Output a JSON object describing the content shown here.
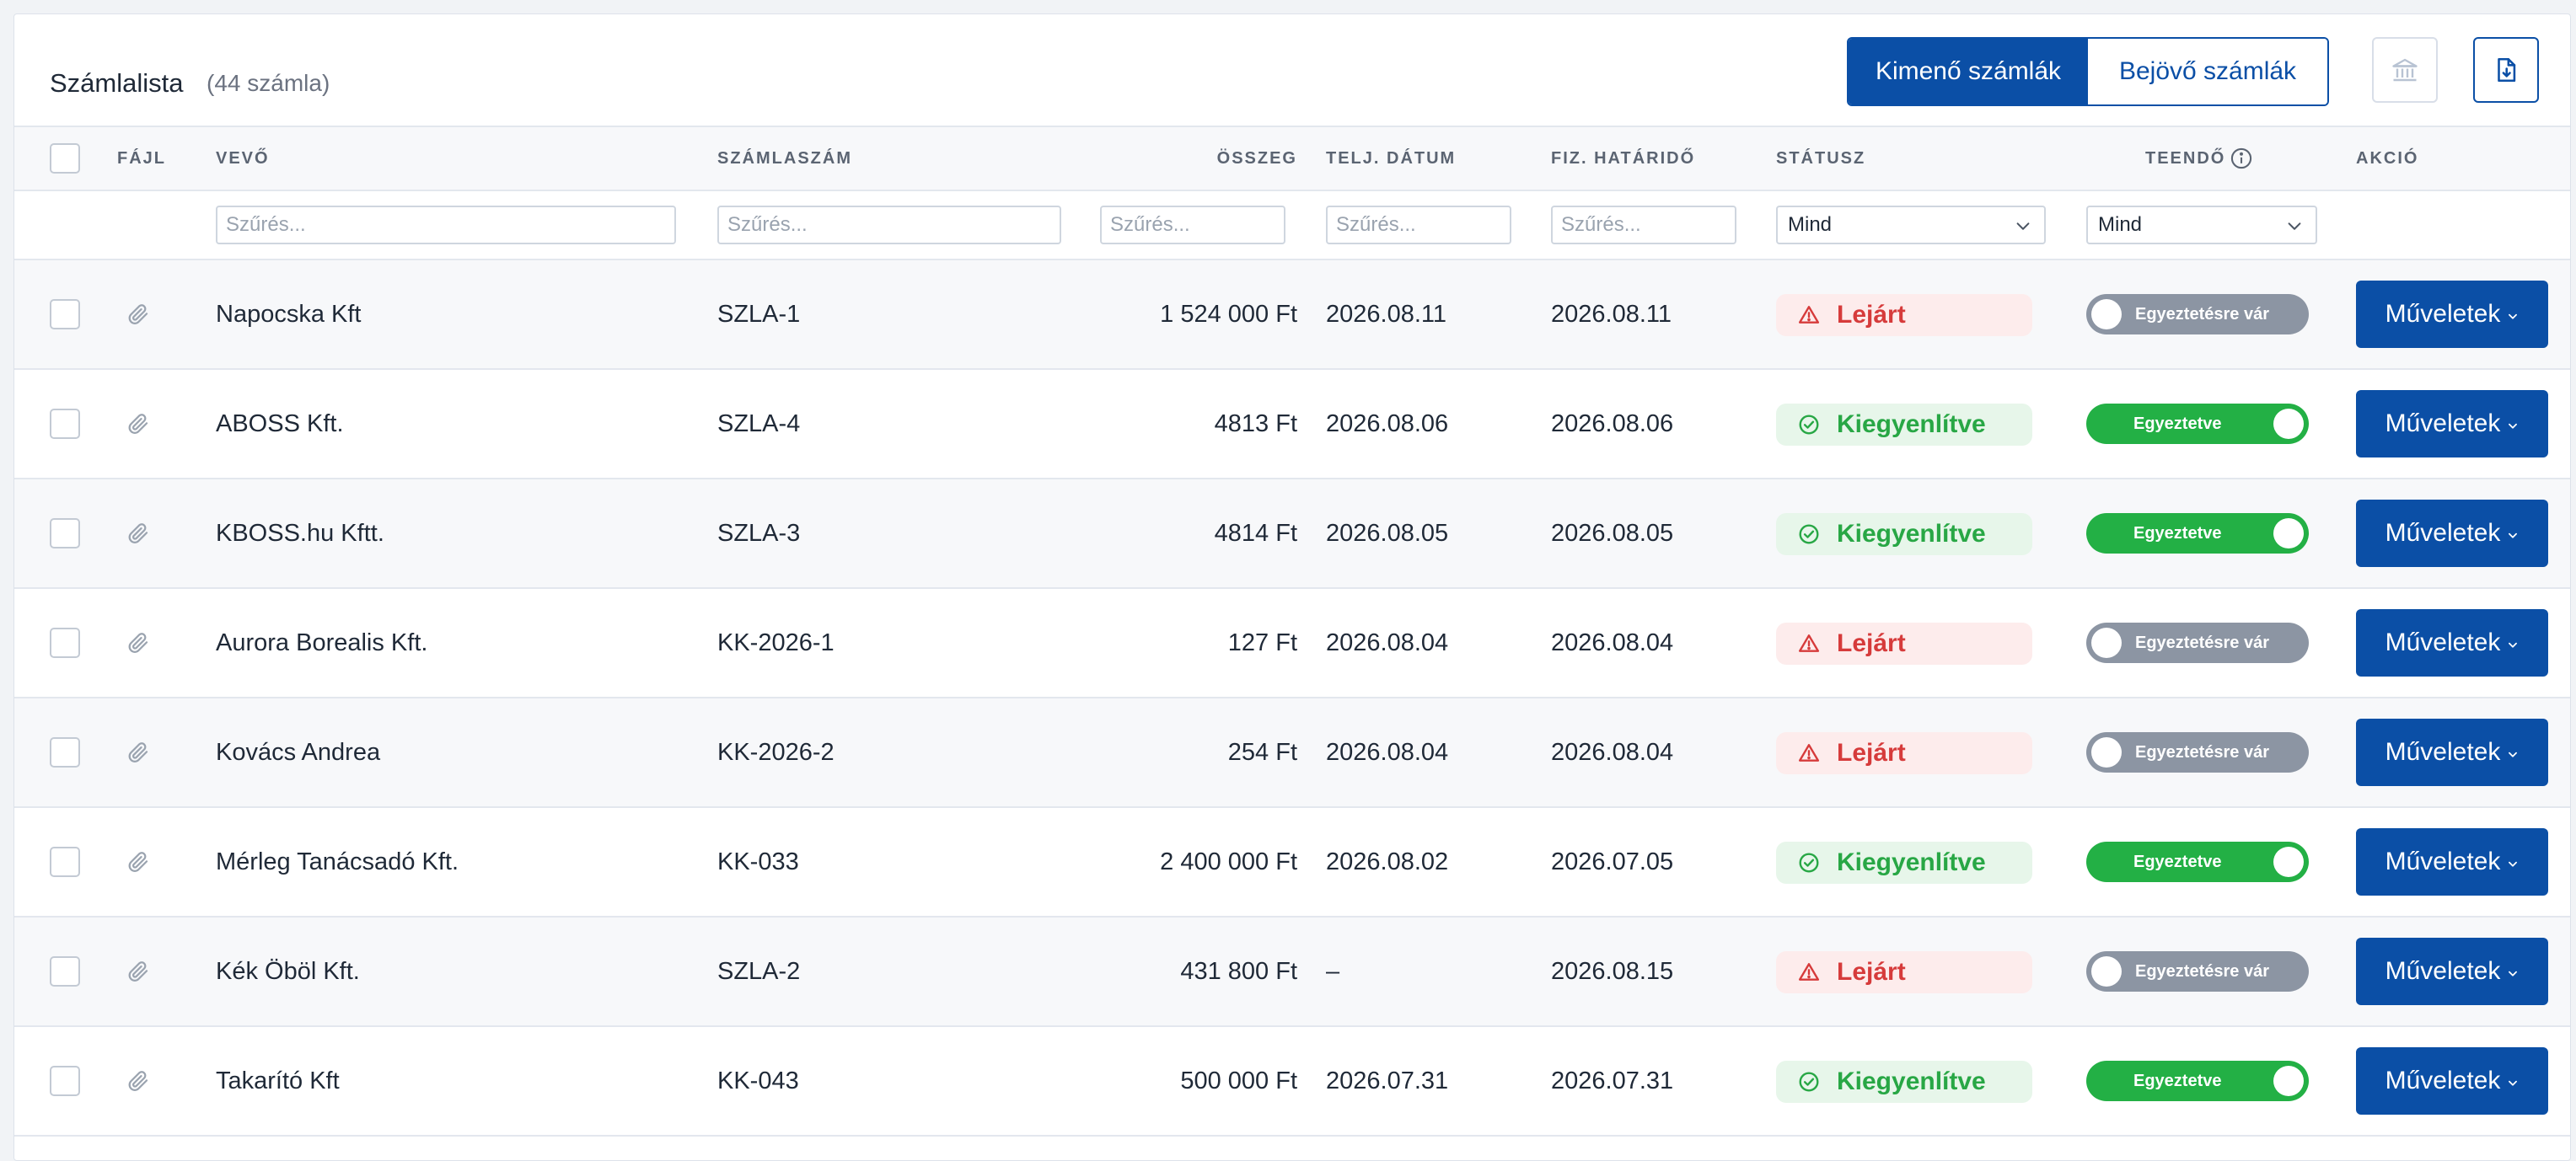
{
  "header": {
    "title": "Számlalista",
    "count": "(44 számla)",
    "tabs": [
      {
        "label": "Kimenő számlák",
        "active": true
      },
      {
        "label": "Bejövő számlák",
        "active": false
      }
    ],
    "bank_icon": "bank-icon",
    "download_icon": "download-icon"
  },
  "table": {
    "columns": {
      "file": "FÁJL",
      "buyer": "VEVŐ",
      "invoice_no": "SZÁMLASZÁM",
      "amount": "ÖSSZEG",
      "perf_date": "TELJ. DÁTUM",
      "due_date": "FIZ. HATÁRIDŐ",
      "status": "STÁTUSZ",
      "todo": "TEENDŐ",
      "action": "AKCIÓ"
    },
    "filters": {
      "placeholder": "Szűrés...",
      "status_select": "Mind",
      "todo_select": "Mind"
    },
    "rows": [
      {
        "buyer": "Napocska Kft",
        "invoice_no": "SZLA-1",
        "amount": "1 524 000 Ft",
        "perf_date": "2026.08.11",
        "due_date": "2026.08.11",
        "status": "Lejárt",
        "status_type": "overdue",
        "todo": "Egyeztetésre vár",
        "todo_on": false,
        "action": "Műveletek"
      },
      {
        "buyer": "ABOSS Kft.",
        "invoice_no": "SZLA-4",
        "amount": "4813 Ft",
        "perf_date": "2026.08.06",
        "due_date": "2026.08.06",
        "status": "Kiegyenlítve",
        "status_type": "paid",
        "todo": "Egyeztetve",
        "todo_on": true,
        "action": "Műveletek"
      },
      {
        "buyer": "KBOSS.hu Kftt.",
        "invoice_no": "SZLA-3",
        "amount": "4814 Ft",
        "perf_date": "2026.08.05",
        "due_date": "2026.08.05",
        "status": "Kiegyenlítve",
        "status_type": "paid",
        "todo": "Egyeztetve",
        "todo_on": true,
        "action": "Műveletek"
      },
      {
        "buyer": "Aurora Borealis Kft.",
        "invoice_no": "KK-2026-1",
        "amount": "127 Ft",
        "perf_date": "2026.08.04",
        "due_date": "2026.08.04",
        "status": "Lejárt",
        "status_type": "overdue",
        "todo": "Egyeztetésre vár",
        "todo_on": false,
        "action": "Műveletek"
      },
      {
        "buyer": "Kovács Andrea",
        "invoice_no": "KK-2026-2",
        "amount": "254 Ft",
        "perf_date": "2026.08.04",
        "due_date": "2026.08.04",
        "status": "Lejárt",
        "status_type": "overdue",
        "todo": "Egyeztetésre vár",
        "todo_on": false,
        "action": "Műveletek"
      },
      {
        "buyer": "Mérleg Tanácsadó Kft.",
        "invoice_no": "KK-033",
        "amount": "2 400 000 Ft",
        "perf_date": "2026.08.02",
        "due_date": "2026.07.05",
        "status": "Kiegyenlítve",
        "status_type": "paid",
        "todo": "Egyeztetve",
        "todo_on": true,
        "action": "Műveletek"
      },
      {
        "buyer": "Kék Öböl Kft.",
        "invoice_no": "SZLA-2",
        "amount": "431 800 Ft",
        "perf_date": "–",
        "due_date": "2026.08.15",
        "status": "Lejárt",
        "status_type": "overdue",
        "todo": "Egyeztetésre vár",
        "todo_on": false,
        "action": "Műveletek"
      },
      {
        "buyer": "Takarító Kft",
        "invoice_no": "KK-043",
        "amount": "500 000 Ft",
        "perf_date": "2026.07.31",
        "due_date": "2026.07.31",
        "status": "Kiegyenlítve",
        "status_type": "paid",
        "todo": "Egyeztetve",
        "todo_on": true,
        "action": "Műveletek"
      }
    ]
  },
  "colors": {
    "primary": "#0b4fa6",
    "overdue_bg": "#fdecec",
    "overdue_text": "#d63b3b",
    "paid_bg": "#e7f6ea",
    "paid_text": "#28a745",
    "switch_on": "#23b045",
    "switch_off": "#8c95a3"
  }
}
